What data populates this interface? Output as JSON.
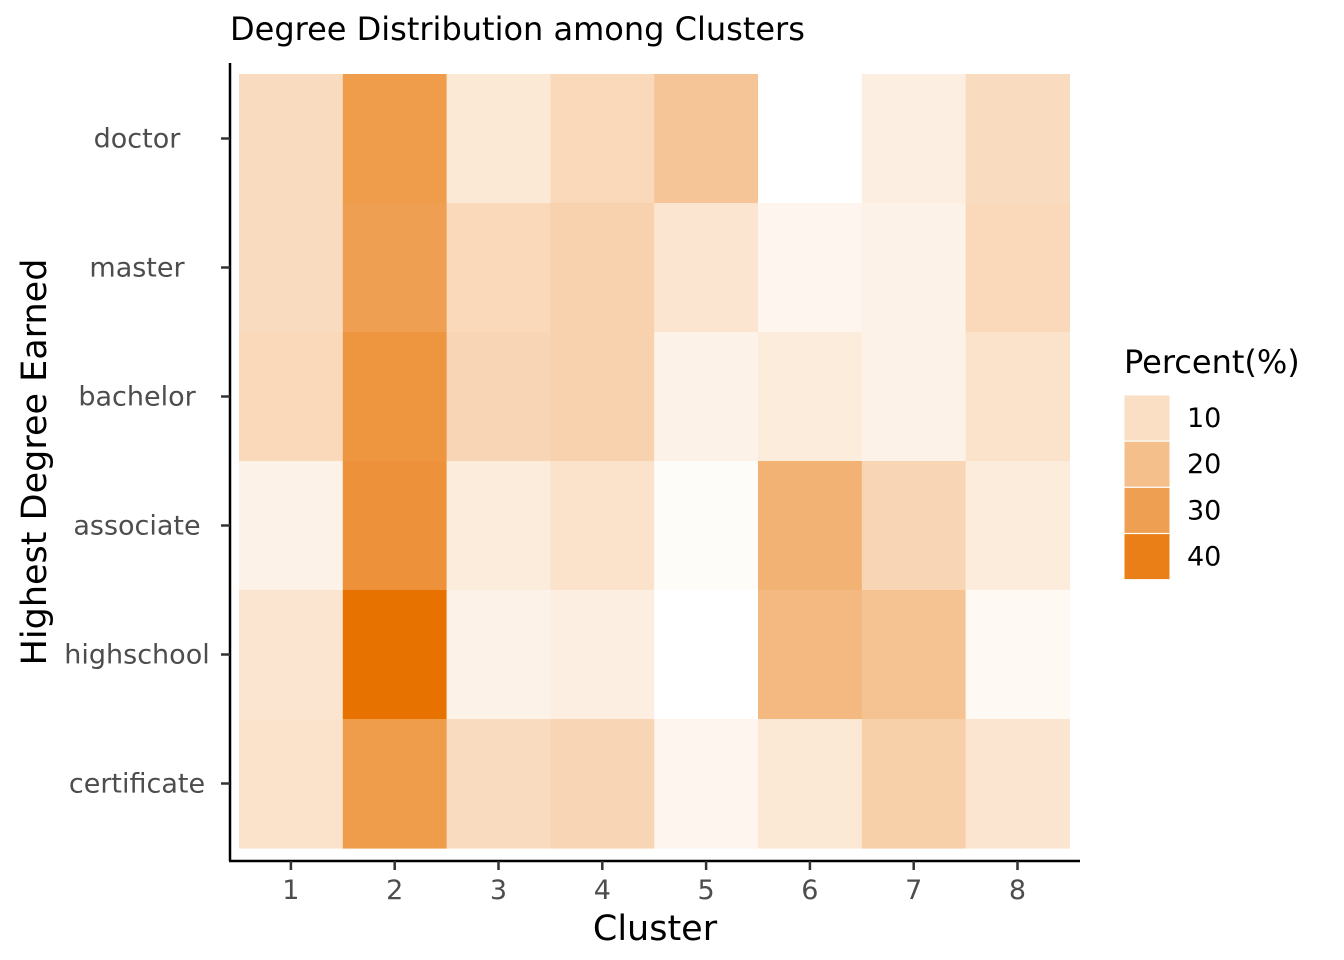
{
  "chart_data": {
    "type": "heatmap",
    "title": "Degree Distribution among Clusters",
    "xlabel": "Cluster",
    "ylabel": "Highest Degree Earned",
    "x_categories": [
      "1",
      "2",
      "3",
      "4",
      "5",
      "6",
      "7",
      "8"
    ],
    "y_categories": [
      "doctor",
      "master",
      "bachelor",
      "associate",
      "highschool",
      "certificate"
    ],
    "values": [
      [
        11,
        31,
        7,
        12,
        18,
        null,
        5,
        11
      ],
      [
        11,
        30,
        12,
        14,
        8,
        3,
        4,
        12
      ],
      [
        12,
        33,
        13,
        14,
        4,
        6,
        4,
        9
      ],
      [
        4,
        34,
        6,
        9,
        1,
        24,
        13,
        6
      ],
      [
        8,
        44,
        4,
        5,
        0,
        22,
        19,
        2
      ],
      [
        9,
        31,
        11,
        13,
        3,
        7,
        15,
        8
      ]
    ],
    "missing_color": "#ffffff",
    "color_scale": {
      "low": "#ffffff",
      "high": "#e87200",
      "min": 0,
      "max": 44
    },
    "legend": {
      "title": "Percent(%)",
      "entries": [
        {
          "label": "10",
          "value": 10
        },
        {
          "label": "20",
          "value": 20
        },
        {
          "label": "30",
          "value": 30
        },
        {
          "label": "40",
          "value": 40
        }
      ],
      "placement": "right"
    },
    "grid": false
  }
}
